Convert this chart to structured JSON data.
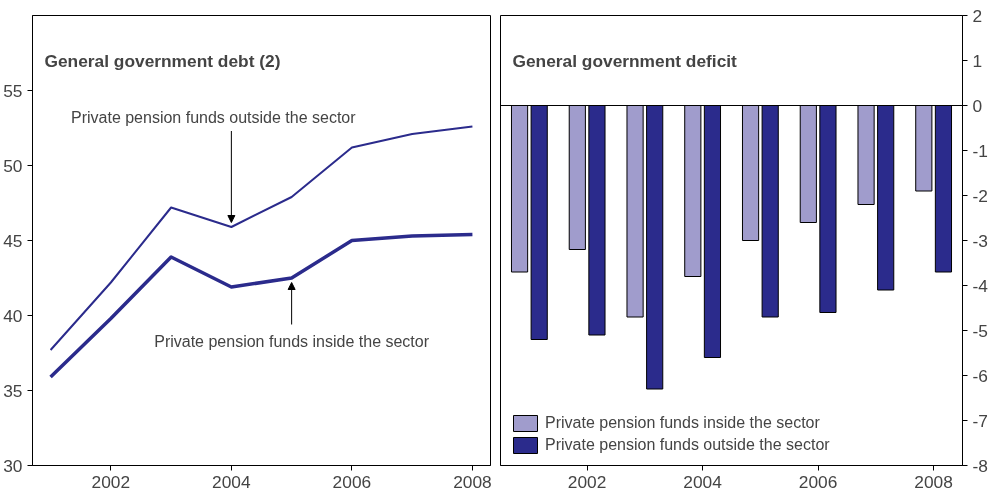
{
  "chart_data": [
    {
      "type": "line",
      "title": "General government debt (2)",
      "x": [
        2001,
        2002,
        2003,
        2004,
        2005,
        2006,
        2007,
        2008
      ],
      "series": [
        {
          "color": "#2b2b8c",
          "values": [
            37.7,
            42.2,
            47.2,
            45.9,
            47.9,
            51.2,
            52.1,
            52.6
          ]
        },
        {
          "color": "#2b2b8c",
          "values": [
            35.9,
            39.8,
            43.9,
            41.9,
            42.5,
            45.0,
            45.3,
            45.4
          ]
        }
      ],
      "annotations": [
        {
          "text": "Private pension funds outside the sector",
          "x": 2004,
          "y": 45.9
        },
        {
          "text": "Private pension funds inside the sector",
          "x": 2005,
          "y": 42.5
        }
      ],
      "xlim": [
        2000.7,
        2008.3
      ],
      "xticks": [
        2002,
        2004,
        2006,
        2008
      ],
      "ylim": [
        30,
        60
      ],
      "yticks": [
        30,
        35,
        40,
        45,
        50,
        55
      ],
      "grid": false
    },
    {
      "type": "bar",
      "title": "General government deficit",
      "x": [
        2001,
        2002,
        2003,
        2004,
        2005,
        2006,
        2007,
        2008
      ],
      "xlim": [
        2000.5,
        2008.5
      ],
      "series": [
        {
          "name": "Private pension funds inside the sector",
          "color": "#a09ccc",
          "values": [
            -3.7,
            -3.2,
            -4.7,
            -3.8,
            -3.0,
            -2.6,
            -2.2,
            -1.9
          ]
        },
        {
          "name": "Private pension funds outside the sector",
          "color": "#2b2b8c",
          "values": [
            -5.2,
            -5.1,
            -6.3,
            -5.6,
            -4.7,
            -4.6,
            -4.1,
            -3.7
          ]
        }
      ],
      "xticks": [
        2002,
        2004,
        2006,
        2008
      ],
      "ylim": [
        -8,
        2
      ],
      "yticks": [
        -8,
        -7,
        -6,
        -5,
        -4,
        -3,
        -2,
        -1,
        0,
        1,
        2
      ],
      "ref_lines": [
        {
          "axis": "y",
          "value": 0
        }
      ],
      "grid": false,
      "legend": "bottom left"
    }
  ]
}
